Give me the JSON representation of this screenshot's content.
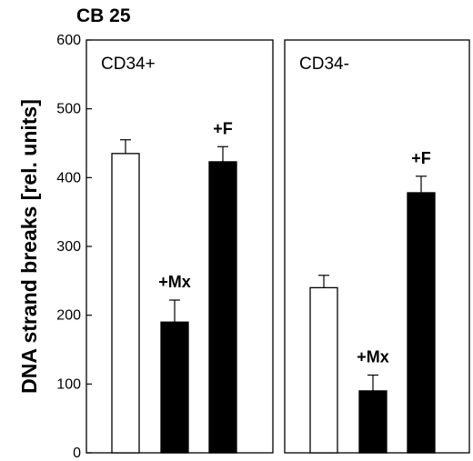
{
  "chart_data": {
    "type": "bar",
    "title": "CB 25",
    "ylabel": "DNA strand breaks [rel. units]",
    "ylim": [
      0,
      600
    ],
    "yticks": [
      0,
      100,
      200,
      300,
      400,
      500,
      600
    ],
    "grid": false,
    "panels": [
      {
        "label": "CD34+",
        "bars": [
          {
            "label": "",
            "value": 435,
            "error": 20,
            "fill": "#ffffff"
          },
          {
            "label": "+Mx",
            "value": 190,
            "error": 32,
            "fill": "#000000"
          },
          {
            "label": "+F",
            "value": 423,
            "error": 22,
            "fill": "#000000"
          }
        ]
      },
      {
        "label": "CD34-",
        "bars": [
          {
            "label": "",
            "value": 240,
            "error": 18,
            "fill": "#ffffff"
          },
          {
            "label": "+Mx",
            "value": 90,
            "error": 23,
            "fill": "#000000"
          },
          {
            "label": "+F",
            "value": 378,
            "error": 24,
            "fill": "#000000"
          }
        ]
      }
    ]
  }
}
